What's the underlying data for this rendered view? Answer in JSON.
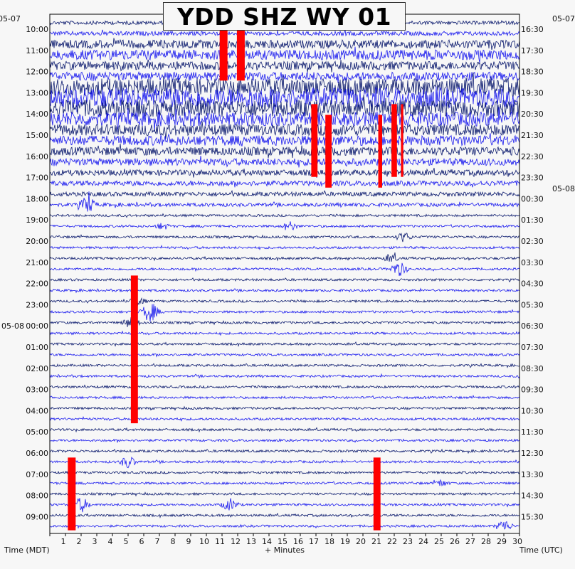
{
  "chart_data": {
    "type": "line",
    "title": "YDD SHZ WY 01",
    "xlabel": "+ Minutes",
    "left_axis_title": "Time (MDT)",
    "right_axis_title": "Time (UTC)",
    "xlim": [
      0,
      30
    ],
    "x_ticks": [
      "1",
      "2",
      "3",
      "4",
      "5",
      "6",
      "7",
      "8",
      "9",
      "10",
      "11",
      "12",
      "13",
      "14",
      "15",
      "16",
      "17",
      "18",
      "19",
      "20",
      "21",
      "22",
      "23",
      "24",
      "25",
      "26",
      "27",
      "28",
      "29",
      "30"
    ],
    "date_markers": {
      "left_top": "05-07",
      "left_mid": "05-08",
      "right_top": "05-07",
      "right_mid": "05-08"
    },
    "left_hour_labels": [
      "10:00",
      "11:00",
      "12:00",
      "13:00",
      "14:00",
      "15:00",
      "16:00",
      "17:00",
      "18:00",
      "19:00",
      "20:00",
      "21:00",
      "22:00",
      "23:00",
      "00:00",
      "01:00",
      "02:00",
      "03:00",
      "04:00",
      "05:00",
      "06:00",
      "07:00",
      "08:00",
      "09:00"
    ],
    "right_hour_labels": [
      "16:30",
      "17:30",
      "18:30",
      "19:30",
      "20:30",
      "21:30",
      "22:30",
      "23:30",
      "00:30",
      "01:30",
      "02:30",
      "03:30",
      "04:30",
      "05:30",
      "06:30",
      "07:30",
      "08:30",
      "09:30",
      "10:30",
      "11:30",
      "12:30",
      "13:30",
      "14:30",
      "15:30"
    ],
    "traces_per_hour": 2,
    "colors": {
      "navy": "#0b1a6e",
      "blue": "#1a1aee",
      "clip": "#ff0000",
      "background": "#f7f7f7"
    },
    "noise_levels": [
      {
        "row": 0,
        "level": 2.5
      },
      {
        "row": 1,
        "level": 3
      },
      {
        "row": 2,
        "level": 6
      },
      {
        "row": 3,
        "level": 7
      },
      {
        "row": 4,
        "level": 6
      },
      {
        "row": 5,
        "level": 6
      },
      {
        "row": 6,
        "level": 12
      },
      {
        "row": 7,
        "level": 14
      },
      {
        "row": 8,
        "level": 12
      },
      {
        "row": 9,
        "level": 10
      },
      {
        "row": 10,
        "level": 8
      },
      {
        "row": 11,
        "level": 7
      },
      {
        "row": 12,
        "level": 6
      },
      {
        "row": 13,
        "level": 5
      },
      {
        "row": 14,
        "level": 4
      },
      {
        "row": 15,
        "level": 3.5
      },
      {
        "row": 16,
        "level": 3
      },
      {
        "row": 17,
        "level": 2.5
      }
    ],
    "clipped_events": [
      {
        "row_start": 0,
        "row_end": 5,
        "minute": 11.1,
        "width_min": 0.5
      },
      {
        "row_start": 0,
        "row_end": 5,
        "minute": 12.2,
        "width_min": 0.5
      },
      {
        "row_start": 8,
        "row_end": 14,
        "minute": 16.9,
        "width_min": 0.4
      },
      {
        "row_start": 9,
        "row_end": 15,
        "minute": 17.8,
        "width_min": 0.4
      },
      {
        "row_start": 9,
        "row_end": 15,
        "minute": 21.1,
        "width_min": 0.25
      },
      {
        "row_start": 8,
        "row_end": 14,
        "minute": 22.0,
        "width_min": 0.35
      },
      {
        "row_start": 8,
        "row_end": 14,
        "minute": 22.5,
        "width_min": 0.15
      },
      {
        "row_start": 24,
        "row_end": 37,
        "minute": 5.4,
        "width_min": 0.45
      },
      {
        "row_start": 41,
        "row_end": 47,
        "minute": 1.4,
        "width_min": 0.5
      },
      {
        "row_start": 41,
        "row_end": 47,
        "minute": 20.9,
        "width_min": 0.45
      }
    ],
    "bursts": [
      {
        "row": 17,
        "minute": 2.4,
        "amp": 14
      },
      {
        "row": 19,
        "minute": 7.2,
        "amp": 6
      },
      {
        "row": 19,
        "minute": 15.3,
        "amp": 8
      },
      {
        "row": 20,
        "minute": 22.6,
        "amp": 8
      },
      {
        "row": 22,
        "minute": 21.8,
        "amp": 7
      },
      {
        "row": 23,
        "minute": 22.3,
        "amp": 12
      },
      {
        "row": 26,
        "minute": 5.6,
        "amp": 8
      },
      {
        "row": 27,
        "minute": 6.4,
        "amp": 16
      },
      {
        "row": 28,
        "minute": 5.2,
        "amp": 10
      },
      {
        "row": 41,
        "minute": 5.0,
        "amp": 10
      },
      {
        "row": 43,
        "minute": 25.0,
        "amp": 6
      },
      {
        "row": 45,
        "minute": 2.0,
        "amp": 12
      },
      {
        "row": 45,
        "minute": 11.5,
        "amp": 10
      },
      {
        "row": 47,
        "minute": 29.0,
        "amp": 10
      }
    ]
  }
}
